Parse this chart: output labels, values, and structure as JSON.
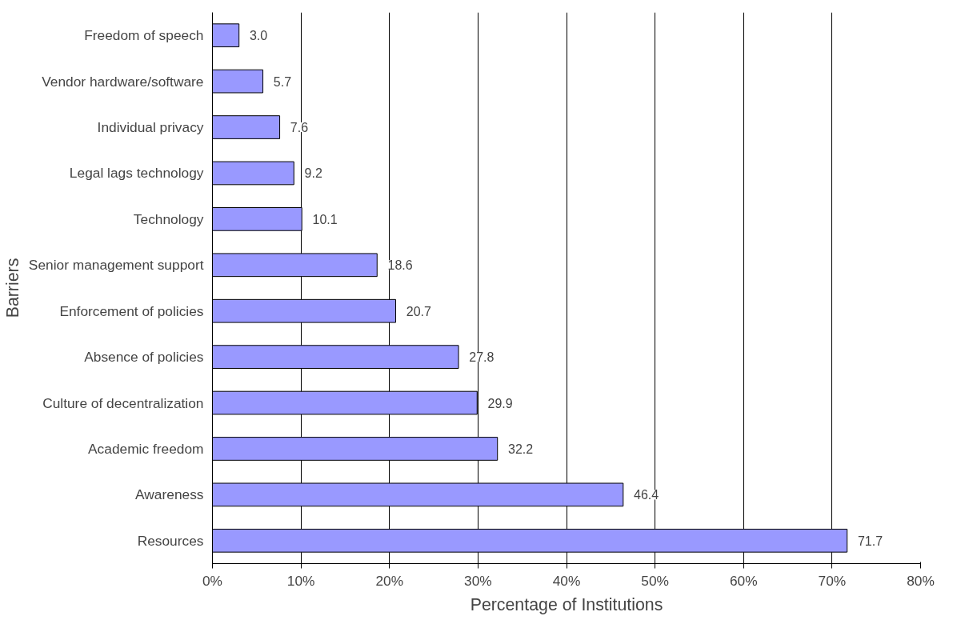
{
  "chart_data": {
    "type": "bar",
    "orientation": "horizontal",
    "xlabel": "Percentage of Institutions",
    "ylabel": "Barriers",
    "categories": [
      "Freedom of speech",
      "Vendor hardware/software",
      "Individual privacy",
      "Legal lags technology",
      "Technology",
      "Senior management support",
      "Enforcement of policies",
      "Absence of policies",
      "Culture of decentralization",
      "Academic freedom",
      "Awareness",
      "Resources"
    ],
    "values": [
      3.0,
      5.7,
      7.6,
      9.2,
      10.1,
      18.6,
      20.7,
      27.8,
      29.9,
      32.2,
      46.4,
      71.7
    ],
    "value_labels": [
      "3.0",
      "5.7",
      "7.6",
      "9.2",
      "10.1",
      "18.6",
      "20.7",
      "27.8",
      "29.9",
      "32.2",
      "46.4",
      "71.7"
    ],
    "color": "#9999ff",
    "xlim": [
      0,
      80
    ],
    "xticks": [
      {
        "value": 0,
        "label": "0%"
      },
      {
        "value": 10,
        "label": "10%"
      },
      {
        "value": 20,
        "label": "20%"
      },
      {
        "value": 30,
        "label": "30%"
      },
      {
        "value": 40,
        "label": "40%"
      },
      {
        "value": 50,
        "label": "50%"
      },
      {
        "value": 60,
        "label": "60%"
      },
      {
        "value": 70,
        "label": "70%"
      },
      {
        "value": 80,
        "label": "80%"
      }
    ],
    "grid": "x"
  }
}
